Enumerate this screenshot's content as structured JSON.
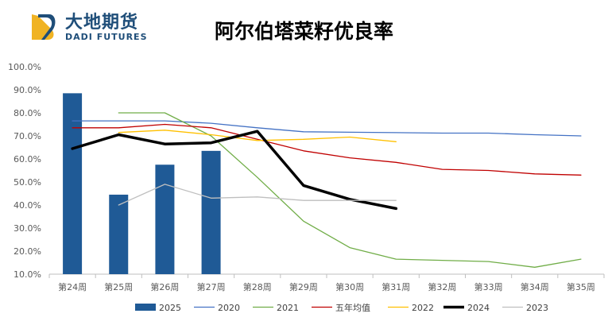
{
  "header": {
    "brand_cn": "大地期货",
    "brand_en": "DADI FUTURES"
  },
  "chart_data": {
    "type": "bar",
    "title": "阿尔伯塔菜籽优良率",
    "xlabel": "",
    "ylabel": "",
    "categories": [
      "第24周",
      "第25周",
      "第26周",
      "第27周",
      "第28周",
      "第29周",
      "第30周",
      "第31周",
      "第32周",
      "第33周",
      "第34周",
      "第35周"
    ],
    "y_ticks": [
      "10.0%",
      "20.0%",
      "30.0%",
      "40.0%",
      "50.0%",
      "60.0%",
      "70.0%",
      "80.0%",
      "90.0%",
      "100.0%"
    ],
    "ylim": [
      10,
      100
    ],
    "grid": false,
    "legend_position": "bottom",
    "series": [
      {
        "name": "2025",
        "kind": "bar",
        "color": "#1f5a96",
        "values": [
          88.5,
          44.5,
          57.5,
          63.5,
          null,
          null,
          null,
          null,
          null,
          null,
          null,
          null
        ]
      },
      {
        "name": "2020",
        "kind": "line",
        "color": "#4472c4",
        "width": 1.3,
        "values": [
          76.5,
          76.5,
          76.5,
          75.5,
          73.5,
          71.8,
          71.6,
          71.4,
          71.2,
          71.2,
          70.5,
          70.0
        ]
      },
      {
        "name": "2021",
        "kind": "line",
        "color": "#70ad47",
        "width": 1.3,
        "values": [
          null,
          80.0,
          80.0,
          70.0,
          52.0,
          33.0,
          21.5,
          16.5,
          16.0,
          15.5,
          13.0,
          16.5
        ]
      },
      {
        "name": "五年均值",
        "kind": "line",
        "color": "#c00000",
        "width": 1.3,
        "values": [
          73.5,
          73.5,
          75.0,
          73.5,
          68.5,
          63.5,
          60.5,
          58.5,
          55.5,
          55.0,
          53.5,
          53.0
        ]
      },
      {
        "name": "2022",
        "kind": "line",
        "color": "#ffc000",
        "width": 1.3,
        "values": [
          null,
          71.5,
          72.5,
          70.5,
          68.0,
          68.5,
          69.5,
          67.5,
          null,
          null,
          null,
          null
        ]
      },
      {
        "name": "2024",
        "kind": "line",
        "color": "#000000",
        "width": 3.5,
        "values": [
          64.5,
          70.5,
          66.5,
          67.0,
          72.0,
          48.5,
          42.5,
          38.5,
          null,
          null,
          null,
          null
        ]
      },
      {
        "name": "2023",
        "kind": "line",
        "color": "#bfbfbf",
        "width": 1.3,
        "values": [
          null,
          40.0,
          49.0,
          43.0,
          43.5,
          42.0,
          42.0,
          42.0,
          null,
          null,
          null,
          null
        ]
      }
    ]
  }
}
